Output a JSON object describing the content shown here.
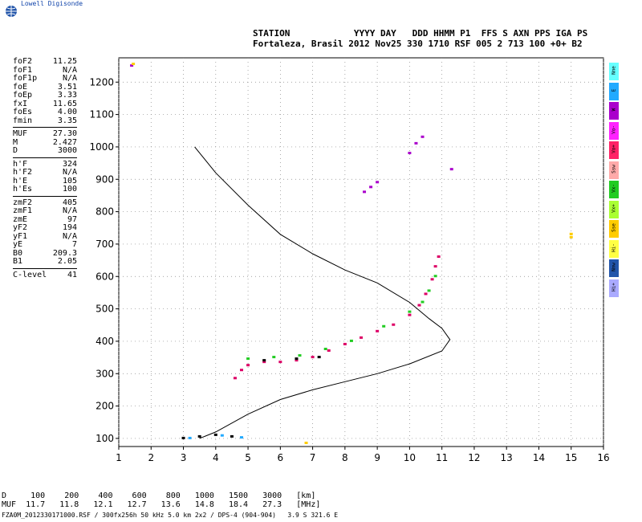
{
  "brand": {
    "name": "Lowell Digisonde"
  },
  "header": {
    "line1": "STATION            YYYY DAY   DDD HHMM P1  FFS S AXN PPS IGA PS",
    "line2": "Fortaleza, Brasil 2012 Nov25 330 1710 RSF 005 2 713 100 +0+ B2"
  },
  "params_group1": [
    {
      "k": "foF2",
      "v": "11.25"
    },
    {
      "k": "foF1",
      "v": "N/A"
    },
    {
      "k": "foF1p",
      "v": "N/A"
    },
    {
      "k": "foE",
      "v": "3.51"
    },
    {
      "k": "foEp",
      "v": "3.33"
    },
    {
      "k": "fxI",
      "v": "11.65"
    },
    {
      "k": "foEs",
      "v": "4.00"
    },
    {
      "k": "fmin",
      "v": "3.35"
    }
  ],
  "params_group2": [
    {
      "k": "MUF",
      "v": "27.30"
    },
    {
      "k": "M",
      "v": "2.427"
    },
    {
      "k": "D",
      "v": "3000"
    }
  ],
  "params_group3": [
    {
      "k": "h'F",
      "v": "324"
    },
    {
      "k": "h'F2",
      "v": "N/A"
    },
    {
      "k": "h'E",
      "v": "105"
    },
    {
      "k": "h'Es",
      "v": "100"
    }
  ],
  "params_group4": [
    {
      "k": "zmF2",
      "v": "405"
    },
    {
      "k": "zmF1",
      "v": "N/A"
    },
    {
      "k": "zmE",
      "v": "97"
    },
    {
      "k": "yF2",
      "v": "194"
    },
    {
      "k": "yF1",
      "v": "N/A"
    },
    {
      "k": "yE",
      "v": "7"
    },
    {
      "k": "B0",
      "v": "209.3"
    },
    {
      "k": "B1",
      "v": "2.05"
    }
  ],
  "params_group5": [
    {
      "k": "C-level",
      "v": "41"
    }
  ],
  "legend": [
    {
      "label": "Nne",
      "color": "#66ffff"
    },
    {
      "label": "E",
      "color": "#22aaff"
    },
    {
      "label": "W",
      "color": "#aa00cc"
    },
    {
      "label": "Vo-",
      "color": "#ff22ff"
    },
    {
      "label": "Vo+",
      "color": "#ff2266"
    },
    {
      "label": "Ssw",
      "color": "#ffaaaa"
    },
    {
      "label": "Vx-",
      "color": "#22cc22"
    },
    {
      "label": "Vx+",
      "color": "#aaff33"
    },
    {
      "label": "Sse",
      "color": "#ffcc00"
    },
    {
      "label": "Hi-",
      "color": "#ffff44"
    },
    {
      "label": "Nnw",
      "color": "#2255aa"
    },
    {
      "label": "Hi+",
      "color": "#aaaaff"
    }
  ],
  "bottom": {
    "line1": "D     100    200    400    600    800   1000   1500   3000   [km]",
    "line2": "MUF  11.7   11.8   12.1   12.7   13.6   14.8   18.4   27.3   [MHz]",
    "file": "FZA0M_2012330171000.RSF / 300fx256h 50 kHz 5.0 km 2x2 / DPS-4 (904-904)   3.9 S 321.6 E"
  },
  "chart_data": {
    "type": "scatter",
    "xlim": [
      1,
      16
    ],
    "ylim": [
      75,
      1275
    ],
    "x_ticks": [
      1,
      2,
      3,
      4,
      5,
      6,
      7,
      8,
      9,
      10,
      11,
      12,
      13,
      14,
      15,
      16
    ],
    "y_ticks": [
      100,
      200,
      300,
      400,
      500,
      600,
      700,
      800,
      900,
      1000,
      1100,
      1200
    ],
    "grid": true,
    "profile": [
      [
        3.35,
        1000
      ],
      [
        4.0,
        920
      ],
      [
        5.0,
        820
      ],
      [
        6.0,
        730
      ],
      [
        7.0,
        670
      ],
      [
        8.0,
        620
      ],
      [
        9.0,
        580
      ],
      [
        10.0,
        520
      ],
      [
        10.6,
        470
      ],
      [
        11.0,
        440
      ],
      [
        11.25,
        405
      ],
      [
        11.0,
        370
      ],
      [
        10.0,
        330
      ],
      [
        9.0,
        300
      ],
      [
        8.0,
        275
      ],
      [
        7.0,
        250
      ],
      [
        6.0,
        220
      ],
      [
        5.0,
        175
      ],
      [
        4.0,
        120
      ],
      [
        3.5,
        100
      ]
    ],
    "echoes": [
      {
        "color": "#dd0066",
        "points": [
          [
            4.6,
            285
          ],
          [
            4.8,
            310
          ],
          [
            5.0,
            325
          ],
          [
            5.5,
            335
          ],
          [
            6.0,
            335
          ],
          [
            6.5,
            340
          ],
          [
            7.0,
            350
          ],
          [
            7.5,
            370
          ],
          [
            8.0,
            390
          ],
          [
            8.5,
            410
          ],
          [
            9.0,
            430
          ],
          [
            9.5,
            450
          ],
          [
            10.0,
            480
          ],
          [
            10.3,
            510
          ],
          [
            10.5,
            545
          ],
          [
            10.7,
            590
          ],
          [
            10.8,
            630
          ],
          [
            10.9,
            660
          ]
        ]
      },
      {
        "color": "#22cc22",
        "points": [
          [
            5.0,
            345
          ],
          [
            5.8,
            350
          ],
          [
            6.6,
            355
          ],
          [
            7.4,
            375
          ],
          [
            8.2,
            400
          ],
          [
            9.2,
            445
          ],
          [
            10.0,
            490
          ],
          [
            10.4,
            520
          ],
          [
            10.6,
            555
          ],
          [
            10.8,
            600
          ]
        ]
      },
      {
        "color": "#aa00cc",
        "points": [
          [
            8.6,
            860
          ],
          [
            8.8,
            875
          ],
          [
            9.0,
            890
          ],
          [
            10.0,
            980
          ],
          [
            10.2,
            1010
          ],
          [
            10.4,
            1030
          ],
          [
            1.4,
            1250
          ],
          [
            11.3,
            930
          ]
        ]
      },
      {
        "color": "#000000",
        "points": [
          [
            3.0,
            100
          ],
          [
            3.5,
            105
          ],
          [
            4.0,
            110
          ],
          [
            4.5,
            105
          ],
          [
            5.5,
            340
          ],
          [
            6.5,
            345
          ],
          [
            7.2,
            350
          ]
        ]
      },
      {
        "color": "#22aaff",
        "points": [
          [
            3.2,
            100
          ],
          [
            4.2,
            108
          ],
          [
            4.8,
            102
          ]
        ]
      },
      {
        "color": "#ffcc00",
        "points": [
          [
            15.0,
            720
          ],
          [
            15.0,
            730
          ],
          [
            6.8,
            85
          ],
          [
            1.45,
            1255
          ]
        ]
      }
    ]
  }
}
